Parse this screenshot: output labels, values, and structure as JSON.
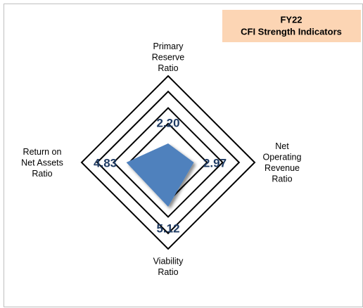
{
  "chart_data": {
    "type": "radar",
    "title": "FY22",
    "subtitle": "CFI  Strength Indicators",
    "categories": [
      [
        "Primary",
        "Reserve",
        "Ratio"
      ],
      [
        "Net",
        "Operating",
        "Revenue",
        "Ratio"
      ],
      [
        "Viability",
        "Ratio"
      ],
      [
        "Return on",
        "Net Assets",
        "Ratio"
      ]
    ],
    "values": [
      2.2,
      2.97,
      5.12,
      4.83
    ],
    "value_labels": [
      "2.20",
      "2.97",
      "5.12",
      "4.83"
    ],
    "color": "#4f81bd",
    "rlim": [
      0,
      10
    ],
    "rticks": [
      4.5,
      6.3,
      8.2,
      10
    ],
    "grid": true
  }
}
